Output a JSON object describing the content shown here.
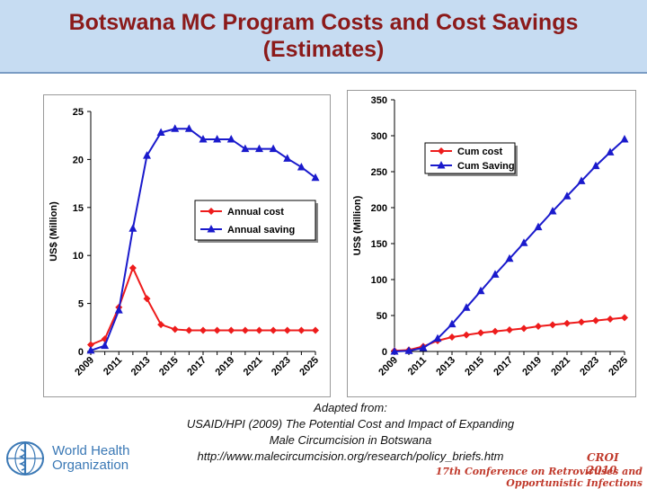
{
  "slide": {
    "title_line1": "Botswana MC Program Costs and Cost Savings",
    "title_line2": "(Estimates)",
    "caption": {
      "line1": "Adapted from:",
      "line2": "USAID/HPI (2009) The Potential Cost and Impact of Expanding",
      "line3": "Male Circumcision in Botswana",
      "line4": "http://www.malecircumcision.org/research/policy_briefs.htm"
    },
    "who_line1": "World Health",
    "who_line2": "Organization",
    "croi": "CROI 2010",
    "conference": "17th Conference on Retroviruses and Opportunistic Infections"
  },
  "colors": {
    "cost": "#ee1c1c",
    "saving": "#1a1acc",
    "title": "#8b1a1a"
  },
  "chart_data": [
    {
      "type": "line",
      "ylabel": "US$ (Million)",
      "ylim": [
        0,
        25
      ],
      "yticks": [
        0,
        5,
        10,
        15,
        20,
        25
      ],
      "years": [
        2009,
        2010,
        2011,
        2012,
        2013,
        2014,
        2015,
        2016,
        2017,
        2018,
        2019,
        2020,
        2021,
        2022,
        2023,
        2024,
        2025
      ],
      "xtick_labels": [
        "2009",
        "2011",
        "2013",
        "2015",
        "2017",
        "2019",
        "2021",
        "2023",
        "2025"
      ],
      "legend": [
        "Annual cost",
        "Annual saving"
      ],
      "series": [
        {
          "name": "Annual cost",
          "marker": "diamond",
          "values": [
            0.7,
            1.3,
            4.6,
            8.7,
            5.5,
            2.8,
            2.3,
            2.2,
            2.2,
            2.2,
            2.2,
            2.2,
            2.2,
            2.2,
            2.2,
            2.2,
            2.2
          ]
        },
        {
          "name": "Annual saving",
          "marker": "triangle",
          "values": [
            0.1,
            0.6,
            4.3,
            12.8,
            20.4,
            22.8,
            23.2,
            23.2,
            22.1,
            22.1,
            22.1,
            21.1,
            21.1,
            21.1,
            20.1,
            19.2,
            18.1
          ]
        }
      ]
    },
    {
      "type": "line",
      "ylabel": "US$ (Million)",
      "ylim": [
        0,
        350
      ],
      "yticks": [
        0,
        50,
        100,
        150,
        200,
        250,
        300,
        350
      ],
      "years": [
        2009,
        2010,
        2011,
        2012,
        2013,
        2014,
        2015,
        2016,
        2017,
        2018,
        2019,
        2020,
        2021,
        2022,
        2023,
        2024,
        2025
      ],
      "xtick_labels": [
        "2009",
        "2011",
        "2013",
        "2015",
        "2017",
        "2019",
        "2021",
        "2023",
        "2025"
      ],
      "legend": [
        "Cum cost",
        "Cum Saving"
      ],
      "series": [
        {
          "name": "Cum cost",
          "marker": "diamond",
          "values": [
            1,
            2,
            7,
            15,
            20,
            23,
            26,
            28,
            30,
            32,
            35,
            37,
            39,
            41,
            43,
            45,
            47
          ]
        },
        {
          "name": "Cum Saving",
          "marker": "triangle",
          "values": [
            0,
            1,
            5,
            18,
            38,
            61,
            84,
            107,
            129,
            151,
            173,
            195,
            216,
            237,
            258,
            277,
            295
          ]
        }
      ]
    }
  ]
}
